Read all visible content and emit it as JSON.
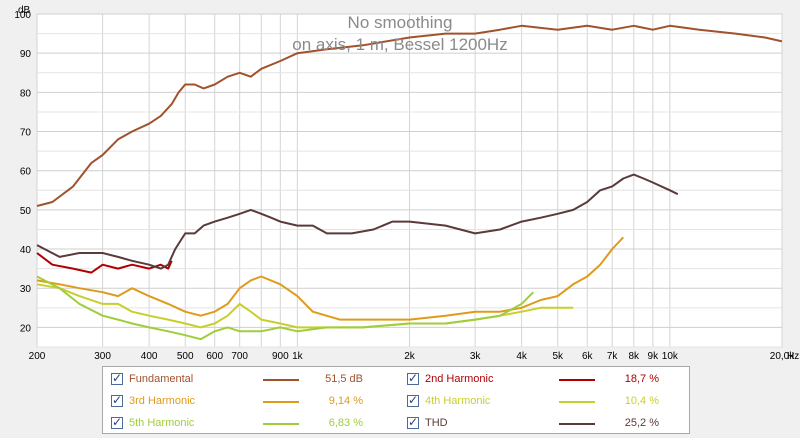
{
  "chart_data": {
    "type": "line",
    "title": "No smoothing",
    "subtitle": "on axis, 1 m, Bessel 1200Hz",
    "ylabel": "dB",
    "xlabel": "Hz",
    "x_scale": "log",
    "xlim": [
      200,
      20000
    ],
    "ylim": [
      15,
      100
    ],
    "y_ticks": [
      20,
      30,
      40,
      50,
      60,
      70,
      80,
      90,
      100
    ],
    "x_ticks": [
      {
        "value": 200,
        "label": "200"
      },
      {
        "value": 300,
        "label": "300"
      },
      {
        "value": 400,
        "label": "400"
      },
      {
        "value": 500,
        "label": "500"
      },
      {
        "value": 600,
        "label": "600"
      },
      {
        "value": 700,
        "label": "700"
      },
      {
        "value": 900,
        "label": "900"
      },
      {
        "value": 1000,
        "label": "1k"
      },
      {
        "value": 2000,
        "label": "2k"
      },
      {
        "value": 3000,
        "label": "3k"
      },
      {
        "value": 4000,
        "label": "4k"
      },
      {
        "value": 5000,
        "label": "5k"
      },
      {
        "value": 6000,
        "label": "6k"
      },
      {
        "value": 7000,
        "label": "7k"
      },
      {
        "value": 8000,
        "label": "8k"
      },
      {
        "value": 9000,
        "label": "9k"
      },
      {
        "value": 10000,
        "label": "10k"
      },
      {
        "value": 20000,
        "label": "20,0k"
      }
    ],
    "grid": true,
    "legend_position": "bottom",
    "series": [
      {
        "name": "Fundamental",
        "value": "51,5 dB",
        "color": "#a0522d",
        "x": [
          200,
          220,
          250,
          280,
          300,
          330,
          360,
          400,
          430,
          460,
          480,
          500,
          530,
          560,
          600,
          650,
          700,
          750,
          800,
          900,
          1000,
          1200,
          1500,
          2000,
          2500,
          3000,
          3500,
          4000,
          5000,
          6000,
          7000,
          8000,
          9000,
          10000,
          12000,
          15000,
          18000,
          20000
        ],
        "y": [
          51,
          52,
          56,
          62,
          64,
          68,
          70,
          72,
          74,
          77,
          80,
          82,
          82,
          81,
          82,
          84,
          85,
          84,
          86,
          88,
          90,
          91,
          92,
          94,
          95,
          95,
          96,
          97,
          96,
          97,
          96,
          97,
          96,
          97,
          96,
          95,
          94,
          93
        ]
      },
      {
        "name": "2nd Harmonic",
        "value": "18,7 %",
        "color": "#b00000",
        "x": [
          200,
          220,
          250,
          280,
          300,
          330,
          360,
          400,
          430,
          450,
          460
        ],
        "y": [
          39,
          36,
          35,
          34,
          36,
          35,
          36,
          35,
          36,
          35,
          37
        ]
      },
      {
        "name": "3rd Harmonic",
        "value": "9,14 %",
        "color": "#e09a1a",
        "x": [
          200,
          230,
          260,
          300,
          330,
          360,
          400,
          450,
          500,
          550,
          600,
          650,
          700,
          750,
          800,
          900,
          1000,
          1100,
          1300,
          1500,
          2000,
          2500,
          3000,
          3500,
          4000,
          4500,
          5000,
          5500,
          6000,
          6500,
          7000,
          7500
        ],
        "y": [
          32,
          31,
          30,
          29,
          28,
          30,
          28,
          26,
          24,
          23,
          24,
          26,
          30,
          32,
          33,
          31,
          28,
          24,
          22,
          22,
          22,
          23,
          24,
          24,
          25,
          27,
          28,
          31,
          33,
          36,
          40,
          43
        ]
      },
      {
        "name": "4th Harmonic",
        "value": "10,4 %",
        "color": "#c8cf2a",
        "x": [
          200,
          230,
          260,
          300,
          330,
          360,
          400,
          450,
          500,
          550,
          600,
          650,
          700,
          750,
          800,
          900,
          1000,
          1200,
          1500,
          2000,
          2500,
          3000,
          3500,
          4000,
          4500,
          5000,
          5500
        ],
        "y": [
          31,
          30,
          28,
          26,
          26,
          24,
          23,
          22,
          21,
          20,
          21,
          23,
          26,
          24,
          22,
          21,
          20,
          20,
          20,
          21,
          21,
          22,
          23,
          24,
          25,
          25,
          25
        ]
      },
      {
        "name": "5th Harmonic",
        "value": "6,83 %",
        "color": "#9fce3a",
        "x": [
          200,
          230,
          260,
          300,
          330,
          360,
          400,
          450,
          500,
          550,
          600,
          650,
          700,
          800,
          900,
          1000,
          1200,
          1500,
          2000,
          2500,
          3000,
          3500,
          4000,
          4300
        ],
        "y": [
          33,
          30,
          26,
          23,
          22,
          21,
          20,
          19,
          18,
          17,
          19,
          20,
          19,
          19,
          20,
          19,
          20,
          20,
          21,
          21,
          22,
          23,
          26,
          29
        ]
      },
      {
        "name": "THD",
        "value": "25,2 %",
        "color": "#5a3a3a",
        "x": [
          200,
          230,
          260,
          300,
          330,
          360,
          400,
          430,
          450,
          470,
          500,
          530,
          560,
          600,
          650,
          700,
          750,
          800,
          850,
          900,
          1000,
          1100,
          1200,
          1400,
          1600,
          1800,
          2000,
          2500,
          3000,
          3500,
          4000,
          4500,
          5000,
          5500,
          6000,
          6500,
          7000,
          7500,
          8000,
          8500,
          9000,
          10000,
          10500
        ],
        "y": [
          41,
          38,
          39,
          39,
          38,
          37,
          36,
          35,
          36,
          40,
          44,
          44,
          46,
          47,
          48,
          49,
          50,
          49,
          48,
          47,
          46,
          46,
          44,
          44,
          45,
          47,
          47,
          46,
          44,
          45,
          47,
          48,
          49,
          50,
          52,
          55,
          56,
          58,
          59,
          58,
          57,
          55,
          54
        ]
      }
    ]
  },
  "legend_glyph": "checkmark"
}
